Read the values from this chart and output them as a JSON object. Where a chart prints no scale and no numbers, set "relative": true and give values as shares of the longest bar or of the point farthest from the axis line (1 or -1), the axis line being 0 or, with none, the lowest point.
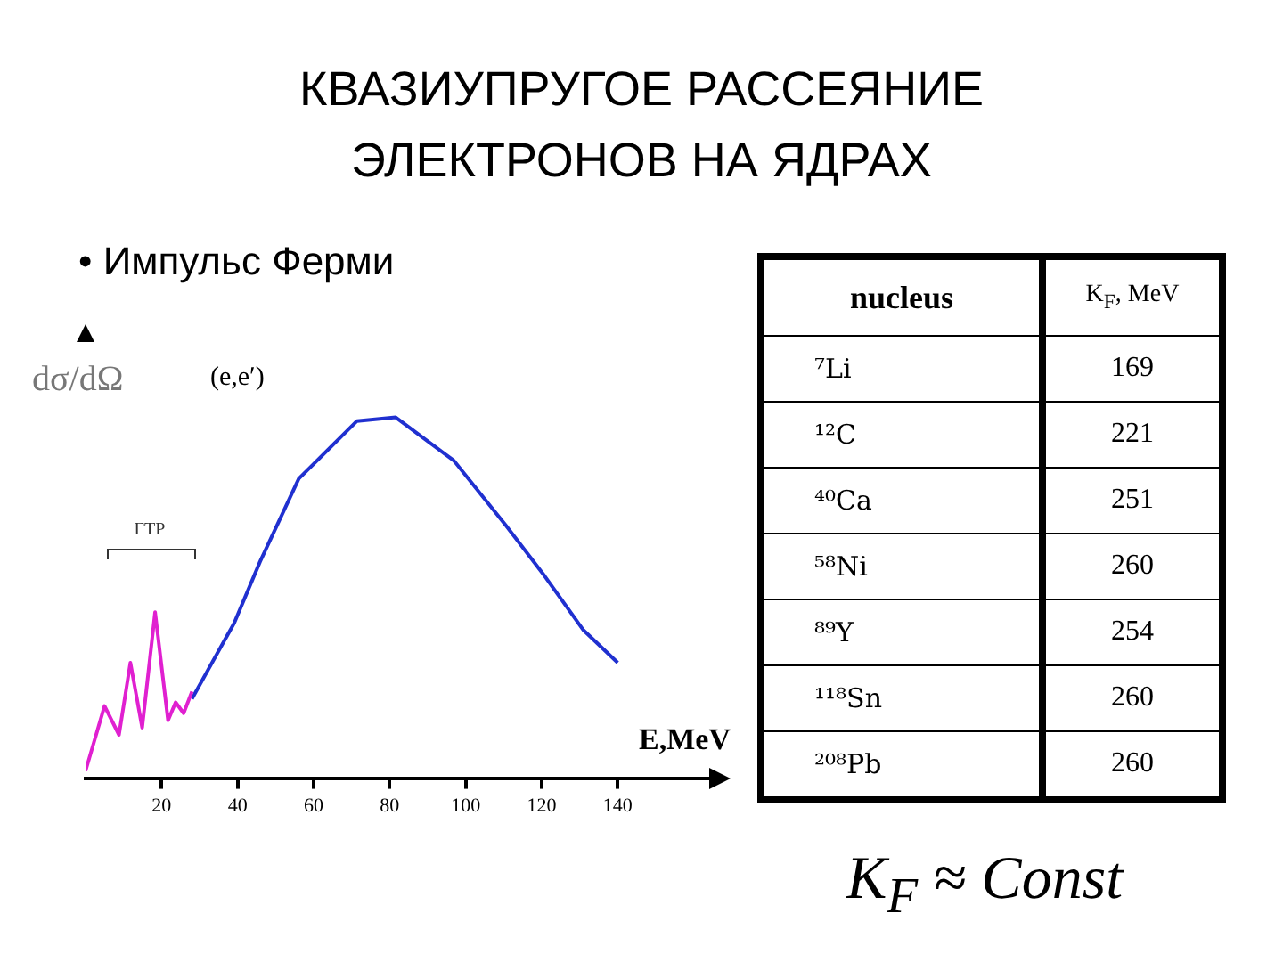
{
  "chart_data": [
    {
      "type": "line",
      "title": "КВАЗИУПРУГОЕ РАССЕЯНИЕ ЭЛЕКТРОНОВ НА ЯДРАХ",
      "subtitle": "• Импульс Ферми",
      "xlabel": "E,MeV",
      "ylabel": "dσ/dΩ",
      "relative": true,
      "xlim": [
        0,
        165
      ],
      "xticks": [
        20,
        40,
        60,
        80,
        100,
        120,
        140
      ],
      "grid": false,
      "legend": false,
      "marker": "none",
      "annotations": [
        "(e,e′)",
        "ГТР"
      ],
      "series": [
        {
          "color": "#e020d0",
          "x": [
            0,
            5,
            8.8,
            11.8,
            14.9,
            18.3,
            21.7,
            23.7,
            25.8,
            28
          ],
          "values": [
            0.02,
            0.2,
            0.12,
            0.32,
            0.14,
            0.46,
            0.16,
            0.21,
            0.18,
            0.24
          ]
        },
        {
          "color": "#2030d0",
          "x": [
            28,
            39.1,
            45.9,
            56.1,
            71.4,
            81.6,
            96.9,
            110.6,
            120.8,
            131,
            140
          ],
          "values": [
            0.22,
            0.43,
            0.6,
            0.83,
            0.99,
            1,
            0.88,
            0.7,
            0.56,
            0.41,
            0.32
          ]
        }
      ]
    },
    {
      "type": "other",
      "xlabel": "nucleus",
      "ylabel": "K$_{F}$, MeV",
      "categories": [
        "⁷Li",
        "¹²C",
        "⁴⁰Ca",
        "⁵⁸Ni",
        "⁸⁹Y",
        "¹¹⁸Sn",
        "²⁰⁸Pb"
      ],
      "values": [
        169,
        221,
        251,
        260,
        254,
        260,
        260
      ],
      "data_labels": true,
      "annotations": [
        "K$_{F}$ ≈ Const"
      ]
    }
  ]
}
